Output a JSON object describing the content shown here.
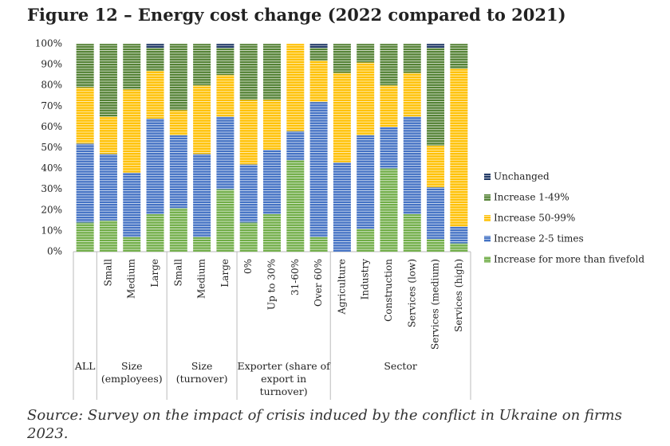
{
  "chart_data": {
    "type": "stacked-bar",
    "title": "Figure 12 – Energy cost change (2022 compared to 2021)",
    "source": "Source: Survey on the impact of crisis induced by the conflict in Ukraine on firms 2023.",
    "groups": [
      {
        "name": "ALL",
        "categories": [
          null
        ]
      },
      {
        "name": "Size (employees)",
        "categories": [
          "Small",
          "Medium",
          "Large"
        ]
      },
      {
        "name": "Size (turnover)",
        "categories": [
          "Small",
          "Medium",
          "Large"
        ]
      },
      {
        "name": "Exporter (share of export in turnover)",
        "categories": [
          "0%",
          "Up to 30%",
          "31-60%",
          "Over 60%"
        ]
      },
      {
        "name": "Sector",
        "categories": [
          "Agriculture",
          "Industry",
          "Construction",
          "Services (low)",
          "Services (medium)",
          "Services (high)"
        ]
      }
    ],
    "series": [
      {
        "name": "Increase for more than fivefold",
        "color": "#70ad47",
        "values": [
          14,
          15,
          7,
          18,
          21,
          7,
          30,
          14,
          18,
          44,
          7,
          0,
          11,
          40,
          18,
          6,
          4
        ]
      },
      {
        "name": "Increase 2-5 times",
        "color": "#4472c4",
        "values": [
          38,
          32,
          31,
          46,
          35,
          40,
          35,
          28,
          31,
          14,
          65,
          43,
          45,
          20,
          47,
          25,
          8
        ]
      },
      {
        "name": "Increase 50-99%",
        "color": "#ffc000",
        "values": [
          27,
          18,
          40,
          23,
          12,
          33,
          20,
          31,
          24,
          42,
          20,
          43,
          35,
          20,
          21,
          20,
          76
        ]
      },
      {
        "name": "Increase 1-49%",
        "color": "#548235",
        "values": [
          21,
          35,
          22,
          11,
          32,
          20,
          13,
          27,
          27,
          0,
          6,
          14,
          9,
          20,
          14,
          47,
          12
        ]
      },
      {
        "name": "Unchanged",
        "color": "#1f3864",
        "values": [
          0,
          0,
          0,
          2,
          0,
          0,
          2,
          0,
          0,
          0,
          2,
          0,
          0,
          0,
          0,
          2,
          0
        ]
      }
    ],
    "ylim": [
      0,
      100
    ],
    "yticks": [
      {
        "value": 0,
        "label": "0%"
      },
      {
        "value": 10,
        "label": "10%"
      },
      {
        "value": 20,
        "label": "20%"
      },
      {
        "value": 30,
        "label": "30%"
      },
      {
        "value": 40,
        "label": "40%"
      },
      {
        "value": 50,
        "label": "50%"
      },
      {
        "value": 60,
        "label": "60%"
      },
      {
        "value": 70,
        "label": "70%"
      },
      {
        "value": 80,
        "label": "80%"
      },
      {
        "value": 90,
        "label": "90%"
      },
      {
        "value": 100,
        "label": "100%"
      }
    ],
    "legend": "right"
  }
}
